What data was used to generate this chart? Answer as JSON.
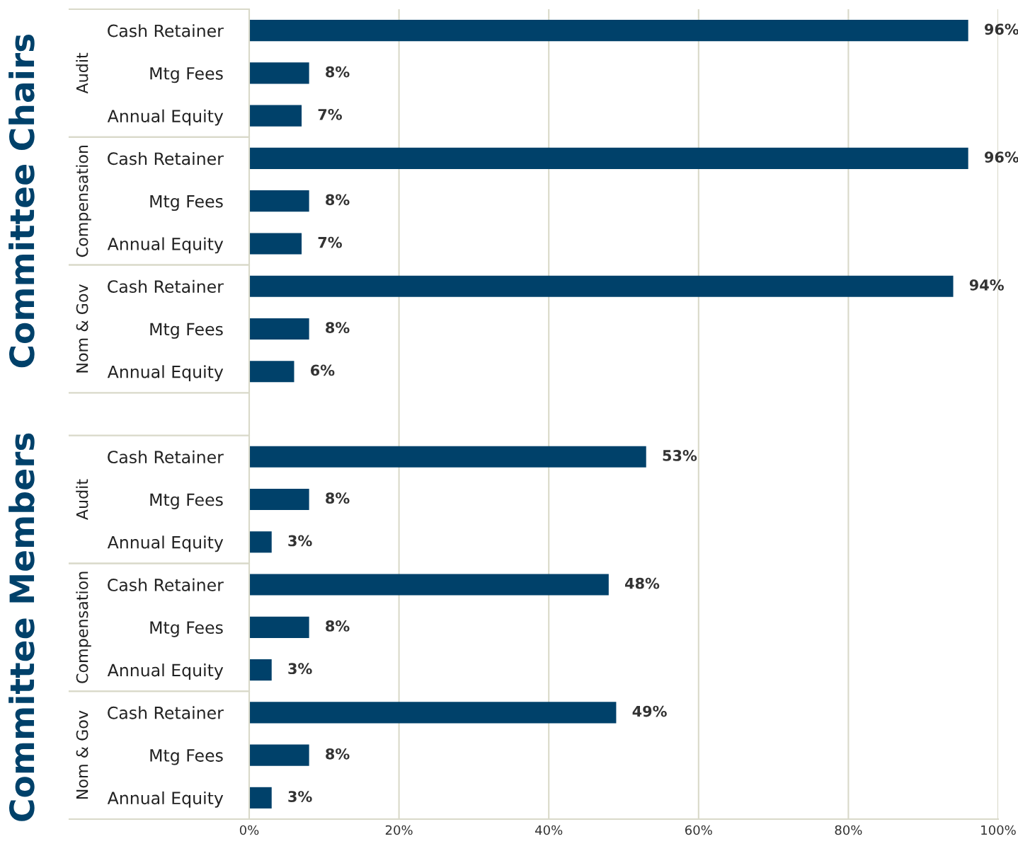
{
  "chart_data": {
    "type": "bar",
    "orientation": "horizontal",
    "categories": [
      "Cash Retainer",
      "Mtg Fees",
      "Annual Equity",
      "Cash Retainer",
      "Mtg Fees",
      "Annual Equity",
      "Cash Retainer",
      "Mtg Fees",
      "Annual Equity",
      null,
      "Cash Retainer",
      "Mtg Fees",
      "Annual Equity",
      "Cash Retainer",
      "Mtg Fees",
      "Annual Equity",
      "Cash Retainer",
      "Mtg Fees",
      "Annual Equity"
    ],
    "values": [
      96,
      8,
      7,
      96,
      8,
      7,
      94,
      8,
      6,
      null,
      53,
      8,
      3,
      48,
      8,
      3,
      49,
      8,
      3
    ],
    "value_labels": [
      "96%",
      "8%",
      "7%",
      "96%",
      "8%",
      "7%",
      "94%",
      "8%",
      "6%",
      null,
      "53%",
      "8%",
      "3%",
      "48%",
      "8%",
      "3%",
      "49%",
      "8%",
      "3%"
    ],
    "color": "#00416a",
    "xlim": [
      0,
      100
    ],
    "xticks": [
      {
        "value": 0,
        "label": "0%"
      },
      {
        "value": 20,
        "label": "20%"
      },
      {
        "value": 40,
        "label": "40%"
      },
      {
        "value": 60,
        "label": "60%"
      },
      {
        "value": 80,
        "label": "80%"
      },
      {
        "value": 100,
        "label": "100%"
      }
    ],
    "grid": "x",
    "annotations": [
      "Committee Chairs",
      "Audit",
      "Compensation",
      "Nom & Gov",
      "Committee Members",
      "Audit",
      "Compensation",
      "Nom & Gov"
    ]
  }
}
